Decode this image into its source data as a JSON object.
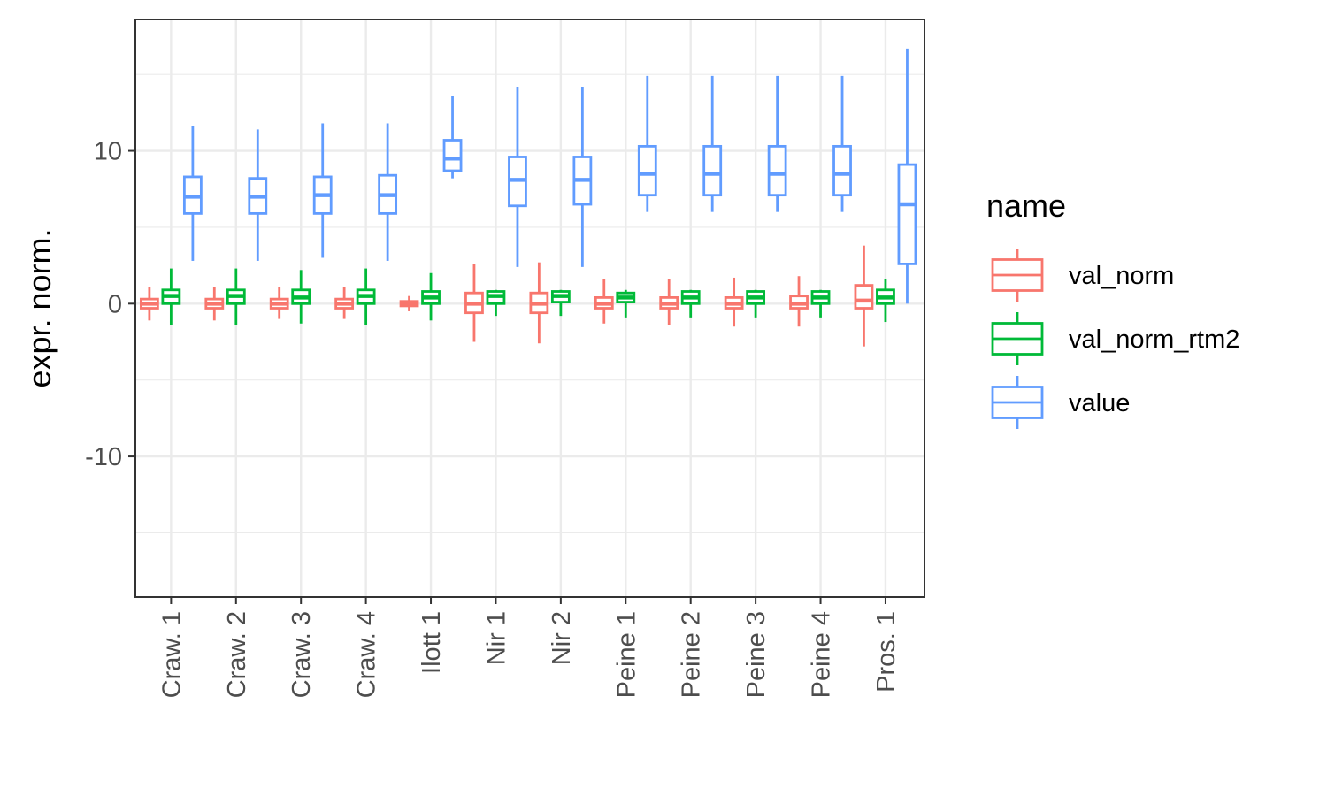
{
  "chart_data": {
    "type": "boxplot",
    "title": "",
    "xlabel": "",
    "ylabel": "expr. norm.",
    "ylim": [
      -19.2,
      18.6
    ],
    "yticks": [
      -10,
      0,
      10
    ],
    "y_minor_ticks": [
      -15,
      -5,
      5,
      15
    ],
    "grid": true,
    "legend_position": "right",
    "legend_title": "name",
    "categories": [
      "Craw. 1",
      "Craw. 2",
      "Craw. 3",
      "Craw. 4",
      "Ilott 1",
      "Nir 1",
      "Nir 2",
      "Peine 1",
      "Peine 2",
      "Peine 3",
      "Peine 4",
      "Pros. 1"
    ],
    "series": [
      {
        "name": "val_norm",
        "color": "#F8766D",
        "boxes": [
          {
            "lower_whisker": -1.1,
            "q1": -0.3,
            "median": 0.0,
            "q3": 0.3,
            "upper_whisker": 1.1
          },
          {
            "lower_whisker": -1.1,
            "q1": -0.3,
            "median": 0.0,
            "q3": 0.3,
            "upper_whisker": 1.1
          },
          {
            "lower_whisker": -1.0,
            "q1": -0.3,
            "median": 0.0,
            "q3": 0.3,
            "upper_whisker": 1.1
          },
          {
            "lower_whisker": -1.0,
            "q1": -0.3,
            "median": 0.0,
            "q3": 0.3,
            "upper_whisker": 1.1
          },
          {
            "lower_whisker": -0.5,
            "q1": -0.15,
            "median": 0.0,
            "q3": 0.15,
            "upper_whisker": 0.5
          },
          {
            "lower_whisker": -2.5,
            "q1": -0.6,
            "median": 0.0,
            "q3": 0.7,
            "upper_whisker": 2.6
          },
          {
            "lower_whisker": -2.6,
            "q1": -0.6,
            "median": 0.0,
            "q3": 0.7,
            "upper_whisker": 2.7
          },
          {
            "lower_whisker": -1.3,
            "q1": -0.3,
            "median": 0.0,
            "q3": 0.4,
            "upper_whisker": 1.6
          },
          {
            "lower_whisker": -1.4,
            "q1": -0.3,
            "median": 0.0,
            "q3": 0.4,
            "upper_whisker": 1.6
          },
          {
            "lower_whisker": -1.5,
            "q1": -0.3,
            "median": 0.0,
            "q3": 0.4,
            "upper_whisker": 1.7
          },
          {
            "lower_whisker": -1.5,
            "q1": -0.3,
            "median": 0.0,
            "q3": 0.5,
            "upper_whisker": 1.8
          },
          {
            "lower_whisker": -2.8,
            "q1": -0.3,
            "median": 0.2,
            "q3": 1.2,
            "upper_whisker": 3.8
          }
        ]
      },
      {
        "name": "val_norm_rtm2",
        "color": "#00BA38",
        "boxes": [
          {
            "lower_whisker": -1.4,
            "q1": 0.0,
            "median": 0.5,
            "q3": 0.9,
            "upper_whisker": 2.3
          },
          {
            "lower_whisker": -1.4,
            "q1": 0.0,
            "median": 0.5,
            "q3": 0.9,
            "upper_whisker": 2.3
          },
          {
            "lower_whisker": -1.3,
            "q1": 0.0,
            "median": 0.4,
            "q3": 0.9,
            "upper_whisker": 2.2
          },
          {
            "lower_whisker": -1.4,
            "q1": 0.0,
            "median": 0.5,
            "q3": 0.9,
            "upper_whisker": 2.3
          },
          {
            "lower_whisker": -1.1,
            "q1": 0.0,
            "median": 0.4,
            "q3": 0.8,
            "upper_whisker": 2.0
          },
          {
            "lower_whisker": -0.8,
            "q1": 0.0,
            "median": 0.5,
            "q3": 0.8,
            "upper_whisker": 0.9
          },
          {
            "lower_whisker": -0.8,
            "q1": 0.1,
            "median": 0.5,
            "q3": 0.8,
            "upper_whisker": 0.9
          },
          {
            "lower_whisker": -0.9,
            "q1": 0.1,
            "median": 0.4,
            "q3": 0.7,
            "upper_whisker": 0.9
          },
          {
            "lower_whisker": -0.9,
            "q1": 0.0,
            "median": 0.4,
            "q3": 0.8,
            "upper_whisker": 0.9
          },
          {
            "lower_whisker": -0.9,
            "q1": 0.0,
            "median": 0.4,
            "q3": 0.8,
            "upper_whisker": 0.9
          },
          {
            "lower_whisker": -0.9,
            "q1": 0.0,
            "median": 0.4,
            "q3": 0.8,
            "upper_whisker": 0.9
          },
          {
            "lower_whisker": -1.2,
            "q1": 0.0,
            "median": 0.4,
            "q3": 0.9,
            "upper_whisker": 1.6
          }
        ]
      },
      {
        "name": "value",
        "color": "#619CFF",
        "boxes": [
          {
            "lower_whisker": 2.8,
            "q1": 5.9,
            "median": 7.0,
            "q3": 8.3,
            "upper_whisker": 11.6
          },
          {
            "lower_whisker": 2.8,
            "q1": 5.9,
            "median": 7.0,
            "q3": 8.2,
            "upper_whisker": 11.4
          },
          {
            "lower_whisker": 3.0,
            "q1": 5.9,
            "median": 7.1,
            "q3": 8.3,
            "upper_whisker": 11.8
          },
          {
            "lower_whisker": 2.8,
            "q1": 5.9,
            "median": 7.1,
            "q3": 8.4,
            "upper_whisker": 11.8
          },
          {
            "lower_whisker": 8.2,
            "q1": 8.7,
            "median": 9.5,
            "q3": 10.7,
            "upper_whisker": 13.6
          },
          {
            "lower_whisker": 2.4,
            "q1": 6.4,
            "median": 8.1,
            "q3": 9.6,
            "upper_whisker": 14.2
          },
          {
            "lower_whisker": 2.4,
            "q1": 6.5,
            "median": 8.1,
            "q3": 9.6,
            "upper_whisker": 14.2
          },
          {
            "lower_whisker": 6.0,
            "q1": 7.1,
            "median": 8.5,
            "q3": 10.3,
            "upper_whisker": 14.9
          },
          {
            "lower_whisker": 6.0,
            "q1": 7.1,
            "median": 8.5,
            "q3": 10.3,
            "upper_whisker": 14.9
          },
          {
            "lower_whisker": 6.0,
            "q1": 7.1,
            "median": 8.5,
            "q3": 10.3,
            "upper_whisker": 14.9
          },
          {
            "lower_whisker": 6.0,
            "q1": 7.1,
            "median": 8.5,
            "q3": 10.3,
            "upper_whisker": 14.9
          },
          {
            "lower_whisker": 0.0,
            "q1": 2.6,
            "median": 6.5,
            "q3": 9.1,
            "upper_whisker": 16.7
          }
        ]
      }
    ]
  }
}
